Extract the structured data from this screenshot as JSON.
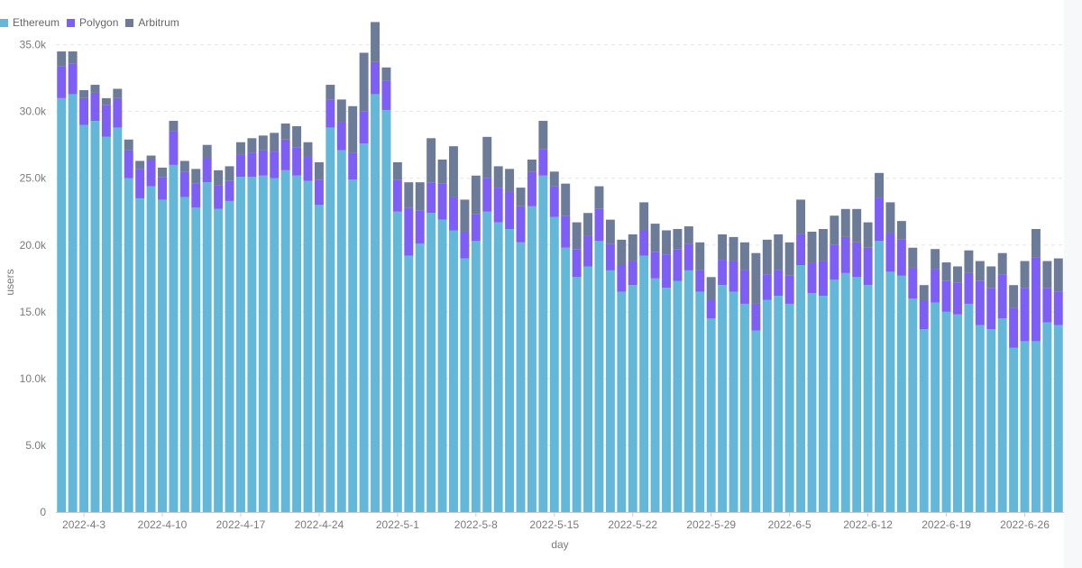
{
  "colors": {
    "Ethereum": "#63b8d9",
    "Polygon": "#7d5ff5",
    "Arbitrum": "#6c7c98"
  },
  "chart_data": {
    "type": "bar",
    "stacked": true,
    "xlabel": "day",
    "ylabel": "users",
    "ylim": [
      0,
      37000
    ],
    "yticks": [
      0,
      5000,
      10000,
      15000,
      20000,
      25000,
      30000,
      35000
    ],
    "ytick_labels": [
      "0",
      "5.0k",
      "10.0k",
      "15.0k",
      "20.0k",
      "25.0k",
      "30.0k",
      "35.0k"
    ],
    "grid": true,
    "legend_position": "top-left",
    "start_date": "2022-04-01",
    "xtick_labels": [
      "2022-4-3",
      "2022-4-10",
      "2022-4-17",
      "2022-4-24",
      "2022-5-1",
      "2022-5-8",
      "2022-5-15",
      "2022-5-22",
      "2022-5-29",
      "2022-6-5",
      "2022-6-12",
      "2022-6-19",
      "2022-6-26"
    ],
    "xtick_dates": [
      "2022-04-03",
      "2022-04-10",
      "2022-04-17",
      "2022-04-24",
      "2022-05-01",
      "2022-05-08",
      "2022-05-15",
      "2022-05-22",
      "2022-05-29",
      "2022-06-05",
      "2022-06-12",
      "2022-06-19",
      "2022-06-26"
    ],
    "series": [
      {
        "name": "Ethereum",
        "values": [
          31000,
          31300,
          29000,
          29300,
          28100,
          28800,
          25000,
          23500,
          24400,
          23400,
          26000,
          23600,
          22800,
          24700,
          22700,
          23300,
          25100,
          25100,
          25200,
          25000,
          25600,
          25200,
          24800,
          23000,
          28800,
          27100,
          24900,
          27600,
          31300,
          30100,
          22500,
          19200,
          20100,
          22400,
          21900,
          21100,
          19000,
          20300,
          22500,
          21700,
          21200,
          20200,
          22900,
          25200,
          22100,
          19800,
          17600,
          18400,
          20300,
          18100,
          16500,
          17000,
          19200,
          17500,
          16800,
          17300,
          18100,
          16500,
          14500,
          17000,
          16500,
          15600,
          13600,
          15900,
          16200,
          15600,
          18500,
          16400,
          16200,
          17400,
          17900,
          17600,
          17000,
          20300,
          18000,
          17700,
          16000,
          13700,
          15700,
          15000,
          14800,
          15600,
          14000,
          13700,
          14500,
          12300,
          12800,
          12800,
          14200,
          14000
        ]
      },
      {
        "name": "Polygon",
        "values": [
          2400,
          2300,
          2000,
          2100,
          2400,
          2200,
          2100,
          2200,
          2000,
          1700,
          2500,
          1900,
          1800,
          1800,
          1800,
          1500,
          1700,
          1800,
          1900,
          2000,
          2300,
          2100,
          1800,
          1900,
          2100,
          2100,
          2000,
          2400,
          2400,
          2200,
          2400,
          3600,
          2500,
          2300,
          2700,
          2500,
          2000,
          2000,
          2500,
          2600,
          2800,
          2700,
          2600,
          2000,
          2300,
          2400,
          2100,
          2300,
          2400,
          2000,
          2000,
          1800,
          1900,
          2000,
          2500,
          2400,
          2000,
          1600,
          1400,
          1900,
          2300,
          2500,
          2000,
          1900,
          1900,
          2100,
          2300,
          2300,
          2600,
          2600,
          2700,
          2600,
          2800,
          3200,
          2900,
          2700,
          2300,
          2100,
          2500,
          2300,
          2400,
          2300,
          3300,
          3100,
          3300,
          3000,
          4000,
          6300,
          2600,
          2500
        ]
      },
      {
        "name": "Arbitrum",
        "values": [
          1100,
          900,
          600,
          600,
          500,
          700,
          800,
          600,
          300,
          700,
          800,
          800,
          1100,
          1000,
          1100,
          1100,
          900,
          1100,
          1100,
          1400,
          1200,
          1600,
          1100,
          1300,
          1100,
          1700,
          3500,
          4400,
          3000,
          1000,
          1300,
          1900,
          2100,
          3300,
          1800,
          3800,
          2400,
          2900,
          3100,
          1600,
          1700,
          1400,
          900,
          2100,
          1100,
          2400,
          2000,
          1700,
          1700,
          1800,
          1900,
          2000,
          2100,
          2100,
          1800,
          1500,
          1300,
          2100,
          1700,
          1900,
          1800,
          2100,
          3800,
          2600,
          2700,
          2500,
          2600,
          2300,
          2400,
          2200,
          2100,
          2500,
          1900,
          1900,
          2300,
          1400,
          1500,
          1200,
          1500,
          1400,
          1200,
          1700,
          1500,
          1600,
          1600,
          1700,
          2000,
          2100,
          2000,
          2500
        ]
      }
    ]
  }
}
